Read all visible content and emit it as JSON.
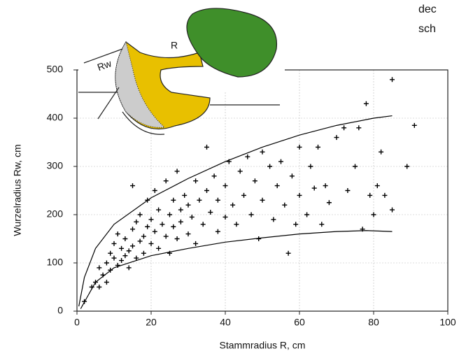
{
  "chart_data": {
    "type": "scatter",
    "xlabel": "Stammradius R, cm",
    "ylabel": "Wurzelradius Rw, cm",
    "annotations": [
      "dec",
      "sch"
    ],
    "diagram_labels": [
      "R",
      "Rw"
    ],
    "xlim": [
      0,
      100
    ],
    "ylim": [
      0,
      500
    ],
    "xticks": [
      0,
      20,
      40,
      60,
      80,
      100
    ],
    "yticks": [
      0,
      100,
      200,
      300,
      400,
      500
    ],
    "grid": true,
    "color": "#000000",
    "points": {
      "x": [
        2,
        4,
        5,
        6,
        6,
        7,
        8,
        8,
        9,
        9,
        10,
        10,
        11,
        11,
        12,
        12,
        13,
        13,
        14,
        14,
        15,
        15,
        15,
        16,
        16,
        17,
        17,
        18,
        18,
        19,
        19,
        20,
        20,
        21,
        21,
        22,
        22,
        23,
        24,
        24,
        25,
        25,
        26,
        26,
        27,
        27,
        28,
        28,
        29,
        30,
        30,
        31,
        32,
        32,
        33,
        34,
        35,
        35,
        36,
        37,
        38,
        38,
        40,
        40,
        41,
        42,
        43,
        44,
        45,
        46,
        47,
        48,
        49,
        50,
        50,
        52,
        53,
        54,
        55,
        56,
        57,
        58,
        59,
        60,
        60,
        62,
        63,
        64,
        65,
        66,
        67,
        68,
        70,
        72,
        73,
        75,
        76,
        77,
        78,
        79,
        80,
        81,
        82,
        83,
        85,
        85,
        89,
        91
      ],
      "values": [
        20,
        50,
        60,
        90,
        50,
        75,
        100,
        60,
        120,
        85,
        110,
        140,
        95,
        160,
        130,
        105,
        115,
        150,
        125,
        90,
        170,
        260,
        135,
        110,
        185,
        145,
        200,
        155,
        120,
        175,
        230,
        140,
        190,
        165,
        250,
        130,
        210,
        180,
        155,
        270,
        200,
        120,
        175,
        230,
        150,
        290,
        210,
        185,
        240,
        160,
        220,
        195,
        270,
        140,
        230,
        180,
        340,
        250,
        205,
        280,
        165,
        230,
        260,
        195,
        310,
        220,
        180,
        290,
        240,
        320,
        200,
        270,
        150,
        330,
        230,
        300,
        190,
        260,
        310,
        220,
        120,
        280,
        180,
        340,
        240,
        200,
        300,
        255,
        340,
        180,
        260,
        225,
        360,
        380,
        250,
        300,
        380,
        170,
        430,
        240,
        200,
        260,
        330,
        240,
        480,
        210,
        300,
        385
      ]
    },
    "curves": [
      {
        "x": [
          0.5,
          2,
          5,
          10,
          20,
          30,
          40,
          50,
          60,
          70,
          80,
          85
        ],
        "values": [
          10,
          70,
          130,
          180,
          235,
          275,
          310,
          340,
          365,
          385,
          400,
          405
        ]
      },
      {
        "x": [
          1,
          5,
          10,
          20,
          30,
          40,
          50,
          60,
          70,
          78,
          85
        ],
        "values": [
          5,
          60,
          90,
          115,
          130,
          143,
          152,
          160,
          165,
          167,
          165
        ]
      }
    ]
  }
}
